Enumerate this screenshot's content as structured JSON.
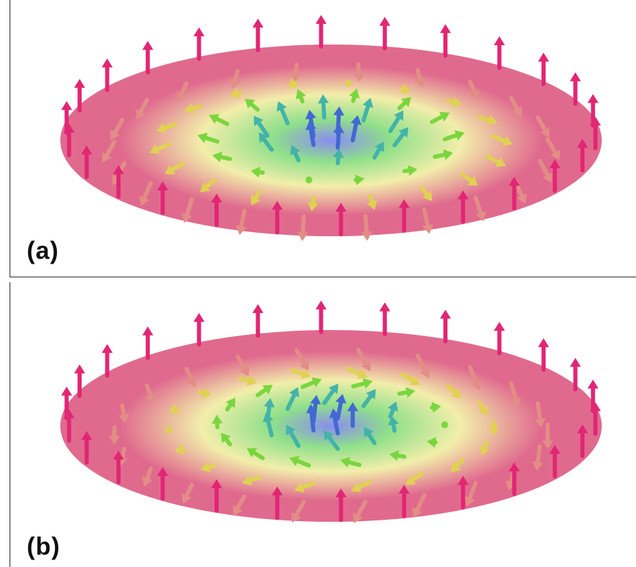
{
  "panels": [
    {
      "label": "(a)",
      "texture": "hedgehog"
    },
    {
      "label": "(b)",
      "texture": "vortex"
    }
  ],
  "colors": {
    "core": "#8a8cf0",
    "mid_green": "#8fe08a",
    "yellow": "#f2eeaa",
    "edge_pink": "#e06a8e",
    "up_arrow": "#e0186e",
    "frame": "#222222"
  }
}
